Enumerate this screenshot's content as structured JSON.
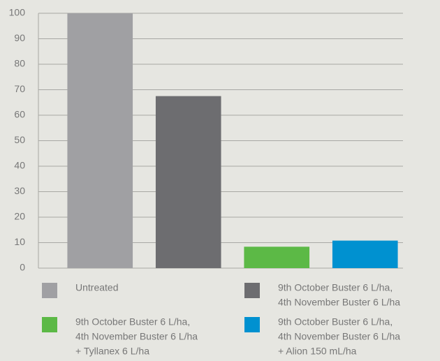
{
  "chart_data": {
    "type": "bar",
    "series": [
      {
        "name": [
          "Untreated"
        ],
        "color": "#a0a0a3",
        "values": [
          100
        ]
      },
      {
        "name": [
          "9th October Buster 6 L/ha,",
          "4th November Buster 6 L/ha"
        ],
        "color": "#6d6d70",
        "values": [
          67.5
        ]
      },
      {
        "name": [
          "9th October Buster 6 L/ha,",
          "4th November Buster 6 L/ha",
          "+ Tyllanex 6 L/ha"
        ],
        "color": "#5cb946",
        "values": [
          8.4
        ]
      },
      {
        "name": [
          "9th October Buster 6 L/ha,",
          "4th November Buster 6 L/ha",
          "+ Alion 150 mL/ha"
        ],
        "color": "#0091d0",
        "values": [
          10.8
        ]
      }
    ],
    "ylim": [
      0,
      100
    ],
    "yticks": [
      0,
      10,
      20,
      30,
      40,
      50,
      60,
      70,
      80,
      90,
      100
    ],
    "grid": true
  }
}
